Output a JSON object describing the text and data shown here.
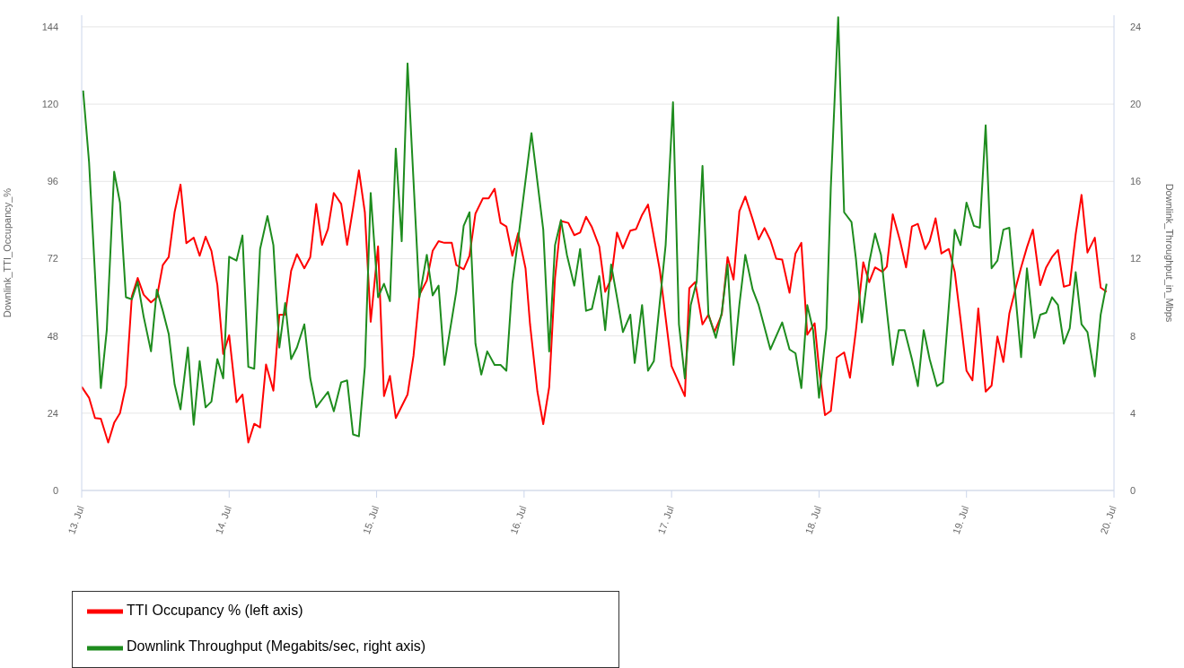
{
  "chart_data": {
    "type": "line",
    "ylabel": "Downlink_TTI_Occupancy_%",
    "y2label": "Downlink_Throughput_in_Mbps",
    "xlim": [
      "--07-13",
      "--07-20"
    ],
    "xticks": [
      {
        "value": "--07-13",
        "label": "13. Jul"
      },
      {
        "value": "--07-14",
        "label": "14. Jul"
      },
      {
        "value": "--07-15",
        "label": "15. Jul"
      },
      {
        "value": "--07-16",
        "label": "16. Jul"
      },
      {
        "value": "--07-17",
        "label": "17. Jul"
      },
      {
        "value": "--07-18",
        "label": "18. Jul"
      },
      {
        "value": "--07-19",
        "label": "19. Jul"
      },
      {
        "value": "--07-20",
        "label": "20. Jul"
      }
    ],
    "ylim": [
      0,
      147.6
    ],
    "yticks": [
      0,
      24,
      48,
      72,
      96,
      120,
      144
    ],
    "y2lim": [
      0,
      24.6
    ],
    "y2ticks": [
      0,
      4,
      8,
      12,
      16,
      20,
      24
    ],
    "grid": "y",
    "legend": "bottom",
    "marker": "none",
    "line_style": "solid",
    "series": [
      {
        "name": "TTI Occupancy % (left axis)",
        "color": "#ff0000",
        "x": [
          "--07-13T00:00",
          "--07-13T01:12",
          "--07-13T02:10",
          "--07-13T03:07",
          "--07-13T04:19",
          "--07-13T05:17",
          "--07-13T06:14",
          "--07-13T07:12",
          "--07-13T08:10",
          "--07-13T09:07",
          "--07-13T10:05",
          "--07-13T11:17",
          "--07-13T12:14",
          "--07-13T13:12",
          "--07-13T14:10",
          "--07-13T15:07",
          "--07-13T16:05",
          "--07-13T17:02",
          "--07-13T18:14",
          "--07-13T19:12",
          "--07-13T20:10",
          "--07-13T21:07",
          "--07-13T22:05",
          "--07-13T23:02",
          "--07-14T00:00",
          "--07-14T01:12",
          "--07-14T02:10",
          "--07-14T03:07",
          "--07-14T04:05",
          "--07-14T05:02",
          "--07-14T06:00",
          "--07-14T07:12",
          "--07-14T08:10",
          "--07-14T09:07",
          "--07-14T10:05",
          "--07-14T11:02",
          "--07-14T12:14",
          "--07-14T13:12",
          "--07-14T14:10",
          "--07-14T15:07",
          "--07-14T16:05",
          "--07-14T17:02",
          "--07-14T18:14",
          "--07-14T19:12",
          "--07-14T20:10",
          "--07-14T21:07",
          "--07-14T22:05",
          "--07-14T23:02",
          "--07-15T00:14",
          "--07-15T01:12",
          "--07-15T02:10",
          "--07-15T03:07",
          "--07-15T05:02",
          "--07-15T06:00",
          "--07-15T06:58",
          "--07-15T08:10",
          "--07-15T09:07",
          "--07-15T10:05",
          "--07-15T11:02",
          "--07-15T12:14",
          "--07-15T12:58",
          "--07-15T14:10",
          "--07-15T15:07",
          "--07-15T16:05",
          "--07-15T17:17",
          "--07-15T18:14",
          "--07-15T19:12",
          "--07-15T20:10",
          "--07-15T21:07",
          "--07-15T22:05",
          "--07-15T23:02",
          "--07-16T00:14",
          "--07-16T00:58",
          "--07-16T02:10",
          "--07-16T03:07",
          "--07-16T04:05",
          "--07-16T05:02",
          "--07-16T06:00",
          "--07-16T07:12",
          "--07-16T08:10",
          "--07-16T09:07",
          "--07-16T10:05",
          "--07-16T11:02",
          "--07-16T12:14",
          "--07-16T13:12",
          "--07-16T14:10",
          "--07-16T15:07",
          "--07-16T16:05",
          "--07-16T17:17",
          "--07-16T18:14",
          "--07-16T19:12",
          "--07-16T20:10",
          "--07-16T22:05",
          "--07-17T00:00",
          "--07-17T02:10",
          "--07-17T02:53",
          "--07-17T03:50",
          "--07-17T05:02",
          "--07-17T06:00",
          "--07-17T06:58",
          "--07-17T08:10",
          "--07-17T09:07",
          "--07-17T10:05",
          "--07-17T11:02",
          "--07-17T12:00",
          "--07-17T13:12",
          "--07-17T14:10",
          "--07-17T15:07",
          "--07-17T16:05",
          "--07-17T17:02",
          "--07-17T18:00",
          "--07-17T19:12",
          "--07-17T20:10",
          "--07-17T21:07",
          "--07-17T22:05",
          "--07-17T23:17",
          "--07-18T00:00",
          "--07-18T00:58",
          "--07-18T01:55",
          "--07-18T02:53",
          "--07-18T04:05",
          "--07-18T05:02",
          "--07-18T06:00",
          "--07-18T07:12",
          "--07-18T08:10",
          "--07-18T09:07",
          "--07-18T10:19",
          "--07-18T11:02",
          "--07-18T12:00",
          "--07-18T13:12",
          "--07-18T14:10",
          "--07-18T15:07",
          "--07-18T16:05",
          "--07-18T17:17",
          "--07-18T18:00",
          "--07-18T18:58",
          "--07-18T19:55",
          "--07-18T21:07",
          "--07-18T22:05",
          "--07-18T23:02",
          "--07-19T00:00",
          "--07-19T00:58",
          "--07-19T01:55",
          "--07-19T03:07",
          "--07-19T04:05",
          "--07-19T05:02",
          "--07-19T06:00",
          "--07-19T06:58",
          "--07-19T08:10",
          "--07-19T08:53",
          "--07-19T09:50",
          "--07-19T10:48",
          "--07-19T12:00",
          "--07-19T12:58",
          "--07-19T13:55",
          "--07-19T14:53",
          "--07-19T15:50",
          "--07-19T16:48",
          "--07-19T17:46",
          "--07-19T18:43",
          "--07-19T19:41",
          "--07-19T20:53",
          "--07-19T21:50",
          "--07-19T22:48"
        ],
        "values": [
          32.2,
          28.8,
          22.5,
          22.3,
          14.9,
          21,
          24,
          32.6,
          60.3,
          66,
          60.8,
          58.4,
          60,
          70,
          72.5,
          86.4,
          95,
          76.8,
          78.5,
          72.9,
          78.8,
          74.4,
          63.8,
          42.4,
          48.2,
          27.4,
          29.8,
          14.9,
          20.7,
          19.6,
          39.1,
          31,
          54.6,
          54.6,
          68.2,
          73.4,
          69,
          72.5,
          89,
          76.3,
          81.2,
          92.4,
          89,
          76.3,
          87.7,
          99.4,
          86.4,
          52.4,
          75.8,
          29.3,
          35.6,
          22.5,
          29.8,
          41.8,
          60.8,
          65.2,
          74.4,
          77.4,
          76.9,
          76.9,
          70,
          68.7,
          72.9,
          86,
          90.7,
          90.7,
          93.7,
          83.1,
          82,
          72.9,
          79.9,
          69,
          51.6,
          30.7,
          20.6,
          32.1,
          66,
          83.7,
          83.1,
          79.3,
          80.1,
          85,
          81.8,
          75.8,
          61.7,
          65.7,
          80.1,
          75.2,
          80.7,
          81.2,
          85.6,
          88.8,
          68.5,
          38.6,
          29.3,
          62.8,
          64.7,
          51.6,
          54.6,
          49.2,
          54.6,
          72.5,
          65.5,
          86.7,
          91.3,
          84.2,
          78,
          81.5,
          77.7,
          72,
          71.7,
          61.4,
          73.6,
          76.9,
          48.4,
          51.9,
          38,
          23.4,
          24.7,
          41.3,
          42.9,
          35,
          49.7,
          70.9,
          64.7,
          69.3,
          67.9,
          69.5,
          85.8,
          77.4,
          69.3,
          82,
          82.8,
          75,
          77.4,
          84.5,
          73.6,
          75,
          67.9,
          53,
          37.2,
          34.2,
          56.5,
          30.7,
          32.6,
          47.8,
          39.9,
          54.9,
          64.1,
          69.3,
          75.5,
          81,
          63.8,
          69.3,
          72.5,
          74.7,
          63.3,
          63.8,
          79.6,
          91.8,
          73.9,
          78.5,
          63,
          61.7
        ]
      },
      {
        "name": "Downlink Throughput (Megabits/sec, right axis)",
        "color": "#1e8c1e",
        "axis": "y2",
        "x": [
          "--07-13T00:14",
          "--07-13T01:12",
          "--07-13T02:10",
          "--07-13T03:07",
          "--07-13T04:05",
          "--07-13T05:17",
          "--07-13T06:14",
          "--07-13T07:12",
          "--07-13T08:10",
          "--07-13T09:07",
          "--07-13T10:05",
          "--07-13T11:17",
          "--07-13T12:14",
          "--07-13T13:12",
          "--07-13T14:10",
          "--07-13T15:07",
          "--07-13T16:05",
          "--07-13T17:17",
          "--07-13T18:14",
          "--07-13T19:12",
          "--07-13T20:10",
          "--07-13T21:07",
          "--07-13T22:05",
          "--07-13T23:02",
          "--07-14T00:00",
          "--07-14T01:12",
          "--07-14T02:10",
          "--07-14T03:07",
          "--07-14T04:05",
          "--07-14T05:02",
          "--07-14T06:14",
          "--07-14T07:12",
          "--07-14T08:10",
          "--07-14T09:07",
          "--07-14T10:05",
          "--07-14T11:02",
          "--07-14T12:14",
          "--07-14T13:12",
          "--07-14T14:10",
          "--07-14T15:07",
          "--07-14T16:05",
          "--07-14T17:02",
          "--07-14T18:14",
          "--07-14T19:12",
          "--07-14T20:10",
          "--07-14T21:07",
          "--07-14T22:05",
          "--07-14T23:02",
          "--07-15T00:14",
          "--07-15T01:12",
          "--07-15T02:10",
          "--07-15T03:07",
          "--07-15T04:05",
          "--07-15T05:02",
          "--07-15T06:58",
          "--07-15T08:10",
          "--07-15T09:07",
          "--07-15T10:05",
          "--07-15T11:02",
          "--07-15T12:58",
          "--07-15T14:10",
          "--07-15T15:07",
          "--07-15T16:05",
          "--07-15T17:02",
          "--07-15T18:00",
          "--07-15T19:12",
          "--07-15T20:10",
          "--07-15T21:07",
          "--07-15T22:05",
          "--07-15T23:02",
          "--07-16T01:12",
          "--07-16T03:07",
          "--07-16T04:05",
          "--07-16T05:02",
          "--07-16T06:00",
          "--07-16T06:58",
          "--07-16T08:10",
          "--07-16T09:07",
          "--07-16T10:05",
          "--07-16T11:02",
          "--07-16T12:14",
          "--07-16T13:12",
          "--07-16T14:10",
          "--07-16T15:07",
          "--07-16T16:05",
          "--07-16T17:17",
          "--07-16T18:00",
          "--07-16T19:12",
          "--07-16T20:10",
          "--07-16T21:07",
          "--07-16T23:02",
          "--07-17T00:14",
          "--07-17T01:12",
          "--07-17T02:10",
          "--07-17T03:07",
          "--07-17T04:05",
          "--07-17T05:02",
          "--07-17T06:00",
          "--07-17T07:12",
          "--07-17T08:10",
          "--07-17T09:07",
          "--07-17T10:05",
          "--07-17T11:02",
          "--07-17T12:00",
          "--07-17T13:12",
          "--07-17T14:10",
          "--07-17T16:05",
          "--07-17T18:00",
          "--07-17T19:12",
          "--07-17T20:10",
          "--07-17T21:07",
          "--07-17T22:05",
          "--07-17T23:02",
          "--07-18T00:00",
          "--07-18T01:12",
          "--07-18T01:55",
          "--07-18T03:07",
          "--07-18T04:05",
          "--07-18T05:17",
          "--07-18T06:00",
          "--07-18T06:58",
          "--07-18T08:10",
          "--07-18T09:07",
          "--07-18T10:05",
          "--07-18T11:02",
          "--07-18T12:00",
          "--07-18T12:58",
          "--07-18T13:55",
          "--07-18T15:07",
          "--07-18T16:05",
          "--07-18T17:02",
          "--07-18T18:00",
          "--07-18T19:12",
          "--07-18T20:10",
          "--07-18T22:05",
          "--07-18T23:02",
          "--07-19T00:00",
          "--07-19T01:12",
          "--07-19T02:10",
          "--07-19T03:07",
          "--07-19T04:05",
          "--07-19T05:02",
          "--07-19T06:00",
          "--07-19T06:58",
          "--07-19T08:53",
          "--07-19T09:50",
          "--07-19T11:02",
          "--07-19T12:00",
          "--07-19T12:58",
          "--07-19T13:55",
          "--07-19T14:53",
          "--07-19T15:50",
          "--07-19T16:48",
          "--07-19T17:46",
          "--07-19T18:43",
          "--07-19T19:41",
          "--07-19T20:53",
          "--07-19T21:50",
          "--07-19T22:48"
        ],
        "values": [
          20.7,
          17,
          11.2,
          5.3,
          8.3,
          16.5,
          14.9,
          10,
          9.9,
          10.8,
          9,
          7.2,
          10.4,
          9.3,
          8.1,
          5.5,
          4.2,
          7.4,
          3.4,
          6.7,
          4.3,
          4.6,
          6.8,
          5.8,
          12.1,
          11.9,
          13.2,
          6.4,
          6.3,
          12.5,
          14.2,
          12.7,
          7.4,
          9.7,
          6.8,
          7.4,
          8.6,
          5.8,
          4.3,
          4.7,
          5.1,
          4.1,
          5.6,
          5.7,
          2.9,
          2.8,
          6.4,
          15.4,
          10,
          10.7,
          9.8,
          17.7,
          12.9,
          22.1,
          10,
          12.2,
          10.1,
          10.6,
          6.5,
          10.3,
          13.7,
          14.4,
          7.6,
          6,
          7.2,
          6.5,
          6.5,
          6.2,
          10.7,
          13,
          18.5,
          13.5,
          7.2,
          12.7,
          14,
          12.2,
          10.6,
          12.5,
          9.3,
          9.4,
          11.1,
          8.3,
          11.7,
          10,
          8.2,
          9.1,
          6.6,
          9.6,
          6.2,
          6.7,
          12.7,
          20.1,
          8.6,
          5.8,
          9.6,
          10.8,
          16.8,
          9.1,
          7.9,
          9.2,
          11.7,
          6.5,
          9.6,
          12.2,
          10.4,
          9.6,
          7.3,
          8.7,
          7.3,
          7.1,
          5.3,
          9.6,
          8.3,
          4.8,
          8.4,
          15.7,
          24.5,
          14.4,
          13.9,
          12,
          8.7,
          11.8,
          13.3,
          12.2,
          9.3,
          6.5,
          8.3,
          8.3,
          6.8,
          5.4,
          8.3,
          6.8,
          5.4,
          5.6,
          13.5,
          12.7,
          14.9,
          13.7,
          13.6,
          18.9,
          11.5,
          11.9,
          13.5,
          13.6,
          6.9,
          11.5,
          7.9,
          9.1,
          9.2,
          10,
          9.6,
          7.6,
          8.4,
          11.3,
          8.6,
          8.2,
          5.9,
          9.1,
          10.7
        ]
      }
    ]
  }
}
